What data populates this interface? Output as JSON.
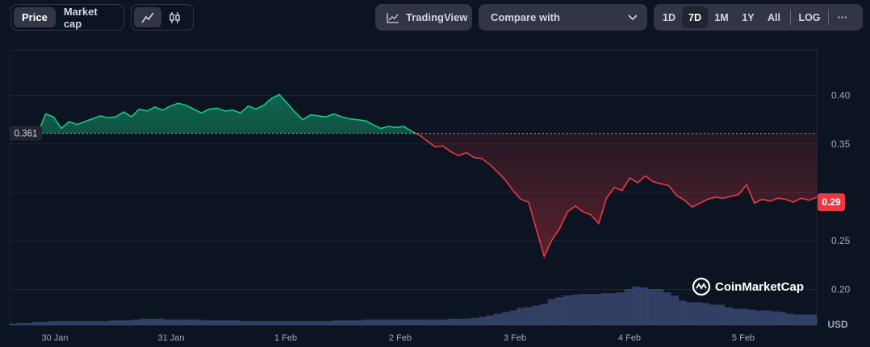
{
  "toolbar": {
    "metric_tabs": [
      "Price",
      "Market cap"
    ],
    "active_metric": "Price",
    "chart_style_icons": [
      "line-chart-icon",
      "candlestick-icon"
    ],
    "tradingview_label": "TradingView",
    "compare_label": "Compare with",
    "ranges": [
      "1D",
      "7D",
      "1M",
      "1Y",
      "All"
    ],
    "active_range": "7D",
    "log_label": "LOG",
    "more_label": "···"
  },
  "watermark": "CoinMarketCap",
  "currency": "USD",
  "colors": {
    "background": "#0d1421",
    "up": "#16c784",
    "down": "#ea3943",
    "grid": "#222531",
    "volume": "#3a4670"
  },
  "chart_data": {
    "type": "area",
    "baseline_value": 0.361,
    "baseline_label": "0.361",
    "current_value": 0.29,
    "current_label": "0.29",
    "y_ticks": [
      0.4,
      0.35,
      0.3,
      0.25,
      0.2
    ],
    "y_tick_labels": [
      "0.40",
      "0.35",
      "",
      "0.25",
      "0.20"
    ],
    "ylim": [
      0.163,
      0.447
    ],
    "x_ticks": [
      "30 Jan",
      "31 Jan",
      "1 Feb",
      "2 Feb",
      "3 Feb",
      "4 Feb",
      "5 Feb"
    ],
    "series": [
      {
        "values": [
          0.361,
          0.381,
          0.378,
          0.366,
          0.373,
          0.37,
          0.373,
          0.376,
          0.379,
          0.377,
          0.378,
          0.383,
          0.378,
          0.386,
          0.384,
          0.388,
          0.385,
          0.389,
          0.392,
          0.39,
          0.386,
          0.382,
          0.386,
          0.387,
          0.384,
          0.385,
          0.382,
          0.389,
          0.386,
          0.39,
          0.397,
          0.401,
          0.392,
          0.383,
          0.375,
          0.38,
          0.379,
          0.378,
          0.381,
          0.378,
          0.376,
          0.375,
          0.374,
          0.37,
          0.366,
          0.368,
          0.367,
          0.368,
          0.363,
          0.359,
          0.353,
          0.347,
          0.348,
          0.342,
          0.338,
          0.341,
          0.336,
          0.335,
          0.329,
          0.321,
          0.313,
          0.302,
          0.293,
          0.29,
          0.262,
          0.234,
          0.251,
          0.263,
          0.28,
          0.286,
          0.28,
          0.277,
          0.268,
          0.294,
          0.305,
          0.302,
          0.315,
          0.31,
          0.317,
          0.311,
          0.309,
          0.307,
          0.297,
          0.292,
          0.285,
          0.289,
          0.293,
          0.295,
          0.294,
          0.296,
          0.298,
          0.308,
          0.289,
          0.293,
          0.291,
          0.294,
          0.293,
          0.29,
          0.294,
          0.292,
          0.295
        ]
      }
    ],
    "volume": [
      2,
      3,
      3,
      4,
      4,
      5,
      5,
      5,
      5,
      5,
      5,
      5,
      5,
      6,
      6,
      6,
      7,
      8,
      8,
      8,
      7,
      7,
      7,
      7,
      7,
      6,
      6,
      6,
      6,
      6,
      5,
      5,
      5,
      5,
      5,
      5,
      5,
      5,
      5,
      5,
      5,
      5,
      6,
      6,
      6,
      6,
      7,
      7,
      7,
      7,
      7,
      7,
      7,
      7,
      7,
      7,
      7,
      8,
      8,
      8,
      9,
      10,
      12,
      14,
      16,
      18,
      21,
      22,
      24,
      26,
      32,
      34,
      36,
      37,
      38,
      38,
      38,
      39,
      39,
      40,
      44,
      47,
      46,
      44,
      44,
      40,
      36,
      30,
      28,
      28,
      27,
      25,
      25,
      22,
      20,
      20,
      19,
      18,
      18,
      17,
      16,
      14,
      13,
      13,
      13
    ]
  }
}
